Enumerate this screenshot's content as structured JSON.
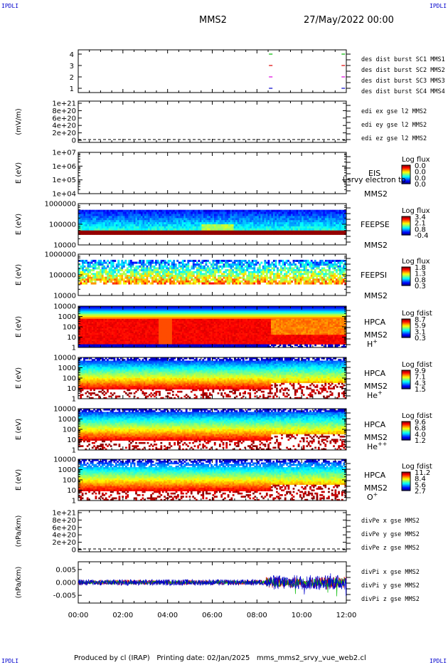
{
  "header": {
    "corner_tl": "IPDLI",
    "corner_tr": "IPDLI",
    "corner_bl": "IPDLI",
    "corner_br": "IPDLI",
    "spacecraft": "MMS2",
    "date": "27/May/2022 00:00"
  },
  "footer": {
    "text": "Produced by cl (IRAP)   Printing date: 02/Jan/2025   mms_mms2_srvy_vue_web2.cl"
  },
  "colors": {
    "red": "#dd0000",
    "green": "#00bb00",
    "blue": "#0000cc",
    "magenta": "#dd00dd"
  },
  "chart_data": [
    {
      "id": "burst",
      "type": "scatter",
      "yticks": [
        "4",
        "3",
        "2",
        "1"
      ],
      "legend": [
        {
          "text": "des dist burst SC1 MMS1",
          "color": "#0000cc"
        },
        {
          "text": "des dist burst SC2 MMS2",
          "color": "#dd00dd"
        },
        {
          "text": "des dist burst SC3 MMS3",
          "color": "#dd0000"
        },
        {
          "text": "des dist burst SC4 MMS4",
          "color": "#00bb00"
        }
      ],
      "marks": [
        {
          "x": 8.6,
          "y": 4,
          "color": "#00bb00"
        },
        {
          "x": 8.6,
          "y": 3,
          "color": "#dd0000"
        },
        {
          "x": 8.6,
          "y": 2,
          "color": "#dd00dd"
        },
        {
          "x": 8.6,
          "y": 1,
          "color": "#0000cc"
        },
        {
          "x": 11.85,
          "y": 4,
          "color": "#00bb00"
        },
        {
          "x": 11.85,
          "y": 3,
          "color": "#dd0000"
        },
        {
          "x": 11.85,
          "y": 2,
          "color": "#dd00dd"
        },
        {
          "x": 11.85,
          "y": 1,
          "color": "#0000cc"
        }
      ]
    },
    {
      "id": "edi",
      "type": "line",
      "ylabel": "(mV/m)",
      "yticks": [
        "1e+21",
        "8e+20",
        "6e+20",
        "4e+20",
        "2e+20",
        "0"
      ],
      "legend": [
        {
          "text": "edi ex gse l2 MMS2",
          "color": "#dd0000"
        },
        {
          "text": "edi ey gse l2 MMS2",
          "color": "#00bb00"
        },
        {
          "text": "edi ez gse l2 MMS2",
          "color": "#0000cc"
        }
      ]
    },
    {
      "id": "eis",
      "type": "heatmap",
      "ylabel": "E (eV)",
      "yticks": [
        "1e+07",
        "1e+06",
        "1e+05",
        "1e+04"
      ],
      "label1": "EIS",
      "label2": "MMS2",
      "overlay": "l srvy electron to",
      "cbar_title": "Log flux",
      "cbar_ticks": [
        "0.0",
        "0.0",
        "0.0",
        "0.0"
      ]
    },
    {
      "id": "feepse",
      "type": "heatmap",
      "ylabel": "E (eV)",
      "yticks": [
        "1000000",
        "100000",
        "10000"
      ],
      "label1": "FEEPSE",
      "label2": "MMS2",
      "cbar_title": "Log flux",
      "cbar_ticks": [
        "3.4",
        "2.1",
        "0.8",
        "-0.4"
      ]
    },
    {
      "id": "feepsi",
      "type": "heatmap",
      "ylabel": "E (eV)",
      "yticks": [
        "1000000",
        "100000",
        "10000"
      ],
      "label1": "FEEPSI",
      "label2": "MMS2",
      "cbar_title": "Log flux",
      "cbar_ticks": [
        "1.8",
        "1.3",
        "0.8",
        "0.3"
      ]
    },
    {
      "id": "hpca_h",
      "type": "heatmap",
      "ylabel": "E (eV)",
      "yticks": [
        "10000",
        "1000",
        "100",
        "10",
        "1"
      ],
      "label1": "HPCA",
      "label2": "MMS2",
      "species": "H",
      "species_sup": "+",
      "cbar_title": "Log fdist",
      "cbar_ticks": [
        "8.7",
        "5.9",
        "3.1",
        "0.3"
      ]
    },
    {
      "id": "hpca_he",
      "type": "heatmap",
      "ylabel": "E (eV)",
      "yticks": [
        "10000",
        "1000",
        "100",
        "10",
        "1"
      ],
      "label1": "HPCA",
      "label2": "MMS2",
      "species": "He",
      "species_sup": "+",
      "cbar_title": "Log fdist",
      "cbar_ticks": [
        "9.9",
        "7.1",
        "4.3",
        "1.5"
      ]
    },
    {
      "id": "hpca_he2",
      "type": "heatmap",
      "ylabel": "E (eV)",
      "yticks": [
        "10000",
        "1000",
        "100",
        "10",
        "1"
      ],
      "label1": "HPCA",
      "label2": "MMS2",
      "species": "He",
      "species_sup": "++",
      "cbar_title": "Log fdist",
      "cbar_ticks": [
        "9.6",
        "6.8",
        "4.0",
        "1.2"
      ]
    },
    {
      "id": "hpca_o",
      "type": "heatmap",
      "ylabel": "E (eV)",
      "yticks": [
        "10000",
        "1000",
        "100",
        "10",
        "1"
      ],
      "label1": "HPCA",
      "label2": "MMS2",
      "species": "O",
      "species_sup": "+",
      "cbar_title": "Log fdist",
      "cbar_ticks": [
        "11.2",
        "8.4",
        "5.6",
        "2.7"
      ]
    },
    {
      "id": "divpe",
      "type": "line",
      "ylabel": "(nPa/km)",
      "yticks": [
        "1e+21",
        "8e+20",
        "6e+20",
        "4e+20",
        "2e+20",
        "0"
      ],
      "legend": [
        {
          "text": "divPe x gse MMS2",
          "color": "#dd0000"
        },
        {
          "text": "divPe y gse MMS2",
          "color": "#00bb00"
        },
        {
          "text": "divPe z gse MMS2",
          "color": "#0000cc"
        }
      ]
    },
    {
      "id": "divpi",
      "type": "line",
      "ylabel": "(nPa/km)",
      "yticks": [
        "0.005",
        "0.000",
        "-0.005"
      ],
      "ylim": [
        -0.008,
        0.008
      ],
      "legend": [
        {
          "text": "divPi x gse MMS2",
          "color": "#dd0000"
        },
        {
          "text": "divPi y gse MMS2",
          "color": "#00bb00"
        },
        {
          "text": "divPi z gse MMS2",
          "color": "#0000cc"
        }
      ]
    }
  ],
  "xaxis": {
    "ticks": [
      "00:00",
      "02:00",
      "04:00",
      "06:00",
      "08:00",
      "10:00",
      "12:00"
    ],
    "range_hours": [
      0,
      12
    ]
  }
}
